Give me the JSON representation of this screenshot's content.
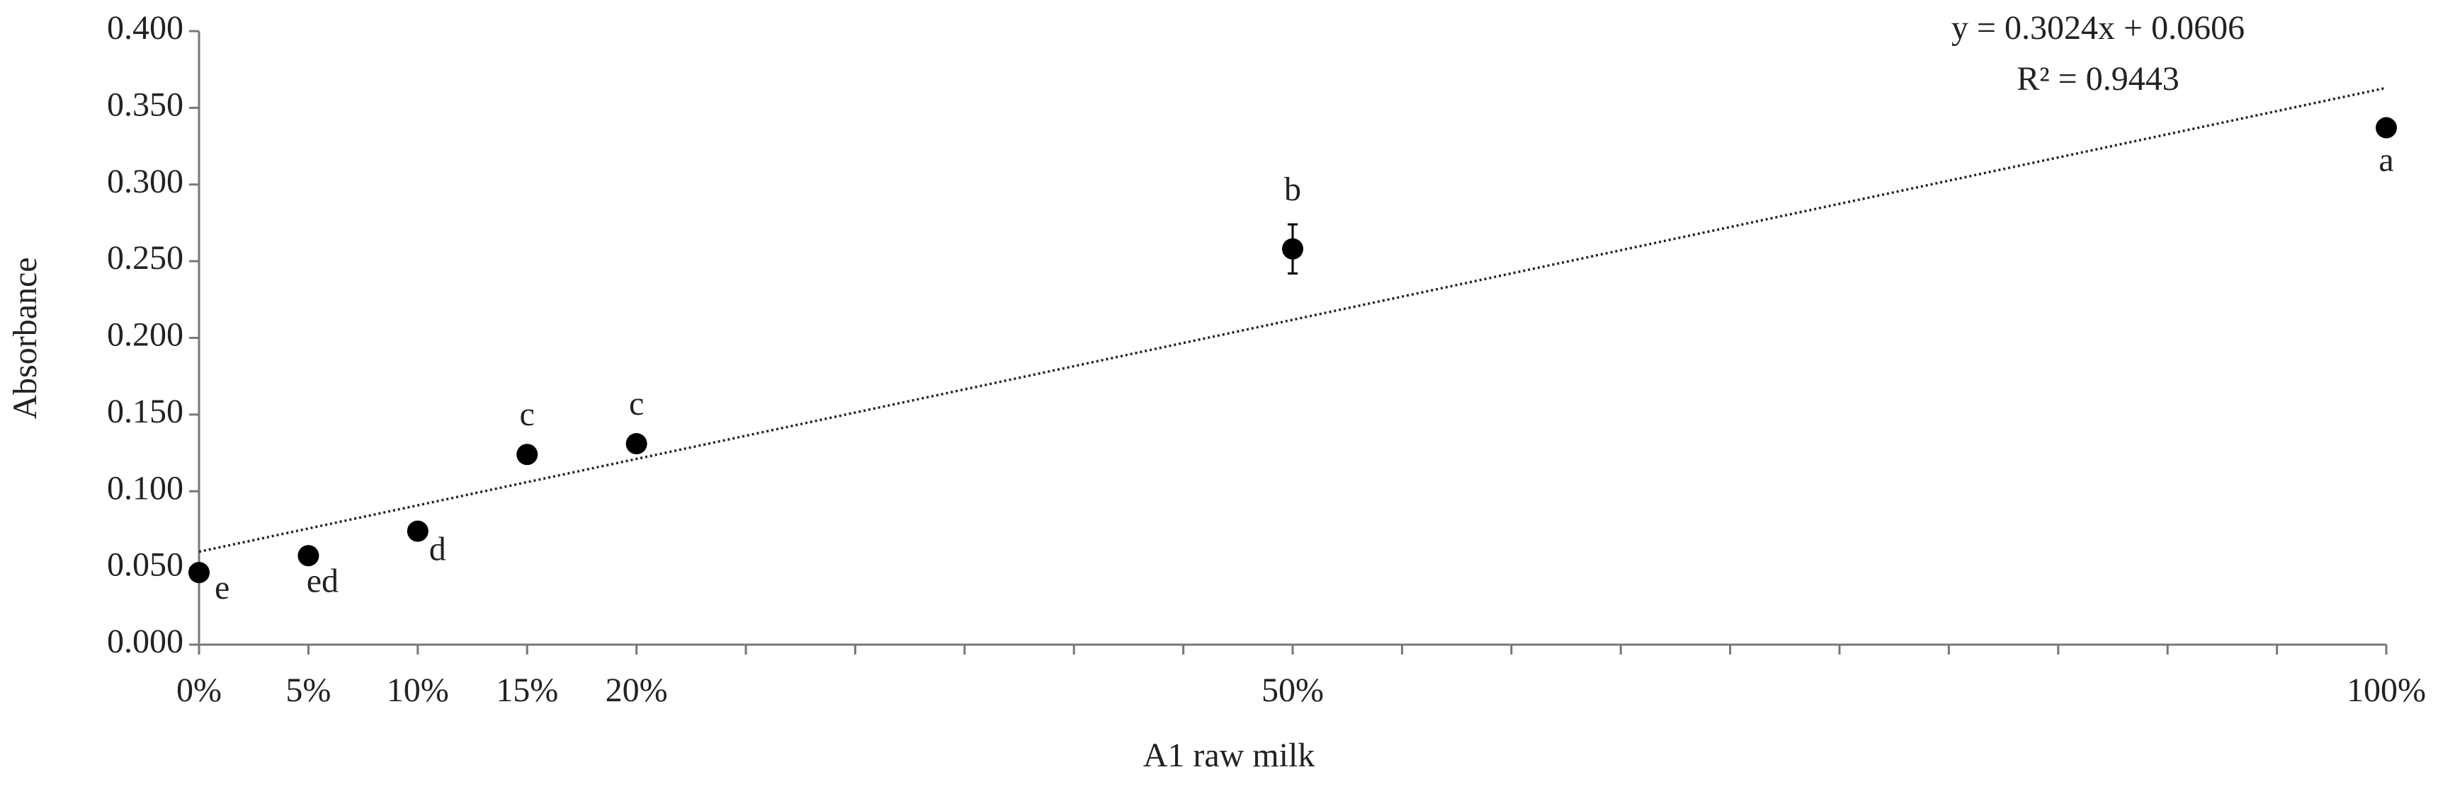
{
  "chart_data": {
    "type": "scatter",
    "xlabel": "A1 raw milk",
    "ylabel": "Absorbance",
    "xlim": [
      0,
      1
    ],
    "ylim": [
      0,
      0.4
    ],
    "xticks": [
      {
        "value": 0,
        "label": "0%"
      },
      {
        "value": 0.05,
        "label": "5%"
      },
      {
        "value": 0.1,
        "label": "10%"
      },
      {
        "value": 0.15,
        "label": "15%"
      },
      {
        "value": 0.2,
        "label": "20%"
      },
      {
        "value": 0.25,
        "label": null
      },
      {
        "value": 0.3,
        "label": null
      },
      {
        "value": 0.35,
        "label": null
      },
      {
        "value": 0.4,
        "label": null
      },
      {
        "value": 0.45,
        "label": null
      },
      {
        "value": 0.5,
        "label": "50%"
      },
      {
        "value": 0.55,
        "label": null
      },
      {
        "value": 0.6,
        "label": null
      },
      {
        "value": 0.65,
        "label": null
      },
      {
        "value": 0.7,
        "label": null
      },
      {
        "value": 0.75,
        "label": null
      },
      {
        "value": 0.8,
        "label": null
      },
      {
        "value": 0.85,
        "label": null
      },
      {
        "value": 0.9,
        "label": null
      },
      {
        "value": 0.95,
        "label": null
      },
      {
        "value": 1,
        "label": "100%"
      }
    ],
    "yticks": [
      {
        "value": 0,
        "label": "0.000"
      },
      {
        "value": 0.05,
        "label": "0.050"
      },
      {
        "value": 0.1,
        "label": "0.100"
      },
      {
        "value": 0.15,
        "label": "0.150"
      },
      {
        "value": 0.2,
        "label": "0.200"
      },
      {
        "value": 0.25,
        "label": "0.250"
      },
      {
        "value": 0.3,
        "label": "0.300"
      },
      {
        "value": 0.35,
        "label": "0.350"
      },
      {
        "value": 0.4,
        "label": "0.400"
      }
    ],
    "series": [
      {
        "color": "#000000",
        "x": [
          0,
          0.05,
          0.1,
          0.15,
          0.2,
          0.5,
          1
        ],
        "values": [
          0.047,
          0.058,
          0.074,
          0.124,
          0.131,
          0.258,
          0.337
        ],
        "errors": [
          0.003,
          0.002,
          0.002,
          0.005,
          0.003,
          0.016,
          0.002
        ],
        "point_labels": [
          "e",
          "ed",
          "d",
          "c",
          "c",
          "b",
          "a"
        ]
      }
    ],
    "trendline": {
      "slope": 0.3024,
      "intercept": 0.0606,
      "equation": "y = 0.3024x + 0.0606",
      "r2_label": "R² = 0.9443"
    }
  }
}
